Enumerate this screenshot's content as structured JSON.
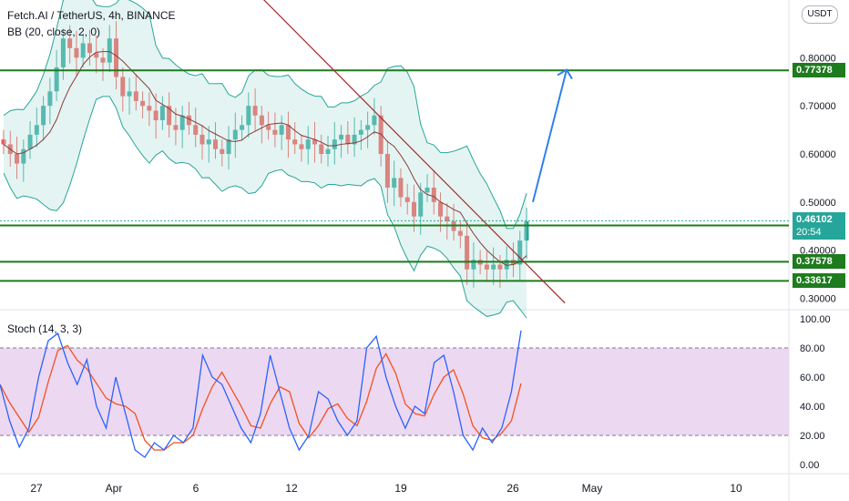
{
  "header": {
    "symbol_line": "Fetch.AI / TetherUS, 4h, BINANCE",
    "indicator_line": "BB (20, close, 2, 0)",
    "currency_button": "USDT"
  },
  "oscillator": {
    "label": "Stoch (14, 3, 3)"
  },
  "colors": {
    "up": "#26a69a",
    "down": "#ef5350",
    "support": "#1e7b1e",
    "bb_fill": "#b2dfdb",
    "bb_line": "#26a69a",
    "bb_basis": "#8b3a3a",
    "trend": "#a52a2a",
    "arrow": "#2f80ed",
    "stoch_k": "#2962ff",
    "stoch_d": "#f4511e",
    "stoch_band": "#e1bee7"
  },
  "chart_data": [
    {
      "type": "candlestick",
      "ylim": [
        0.28,
        0.92
      ],
      "y_tick_labels": [
        "0.30000",
        "0.40000",
        "0.50000",
        "0.60000",
        "0.70000",
        "0.80000"
      ],
      "y_ticks": [
        0.3,
        0.4,
        0.5,
        0.6,
        0.7,
        0.8
      ],
      "x_tick_labels": [
        "27",
        "Apr",
        "6",
        "12",
        "19",
        "26",
        "May",
        "10"
      ],
      "horizontal_levels": [
        {
          "value": 0.77378,
          "label": "0.77378"
        },
        {
          "value": 0.45126,
          "label": "0.45126"
        },
        {
          "value": 0.37578,
          "label": "0.37578"
        },
        {
          "value": 0.33617,
          "label": "0.33617"
        }
      ],
      "current_price": {
        "value": 0.46102,
        "label": "0.46102",
        "countdown": "20:54"
      },
      "trendline": {
        "from": {
          "t": 0.04,
          "price": 0.93
        },
        "to": {
          "t": 0.67,
          "price": 0.29
        }
      },
      "projection_arrow": {
        "from": {
          "t": 0.64,
          "price": 0.5
        },
        "to": {
          "t": 0.695,
          "price": 0.77
        }
      },
      "closes": [
        0.62,
        0.6,
        0.58,
        0.61,
        0.64,
        0.66,
        0.7,
        0.73,
        0.78,
        0.84,
        0.82,
        0.8,
        0.83,
        0.81,
        0.8,
        0.79,
        0.84,
        0.76,
        0.72,
        0.73,
        0.71,
        0.7,
        0.69,
        0.67,
        0.7,
        0.66,
        0.65,
        0.68,
        0.66,
        0.64,
        0.62,
        0.63,
        0.61,
        0.6,
        0.63,
        0.65,
        0.66,
        0.7,
        0.68,
        0.66,
        0.65,
        0.64,
        0.66,
        0.63,
        0.62,
        0.61,
        0.63,
        0.62,
        0.6,
        0.61,
        0.63,
        0.64,
        0.62,
        0.64,
        0.65,
        0.66,
        0.68,
        0.6,
        0.53,
        0.55,
        0.51,
        0.5,
        0.47,
        0.52,
        0.53,
        0.5,
        0.47,
        0.46,
        0.44,
        0.43,
        0.36,
        0.38,
        0.37,
        0.36,
        0.37,
        0.36,
        0.38,
        0.37,
        0.42,
        0.46
      ]
    },
    {
      "type": "line",
      "ylim": [
        0,
        100
      ],
      "y_tick_labels": [
        "0.00",
        "20.00",
        "40.00",
        "60.00",
        "80.00",
        "100.00"
      ],
      "y_ticks": [
        0,
        20,
        40,
        60,
        80,
        100
      ],
      "bands": [
        20,
        80
      ],
      "k_values": [
        55,
        30,
        12,
        25,
        60,
        85,
        90,
        70,
        55,
        72,
        40,
        25,
        60,
        35,
        10,
        5,
        15,
        10,
        20,
        15,
        25,
        75,
        60,
        55,
        40,
        25,
        15,
        35,
        75,
        50,
        25,
        10,
        20,
        50,
        45,
        30,
        20,
        30,
        80,
        88,
        60,
        40,
        25,
        40,
        35,
        70,
        75,
        50,
        20,
        10,
        25,
        15,
        25,
        50,
        92
      ]
    }
  ]
}
